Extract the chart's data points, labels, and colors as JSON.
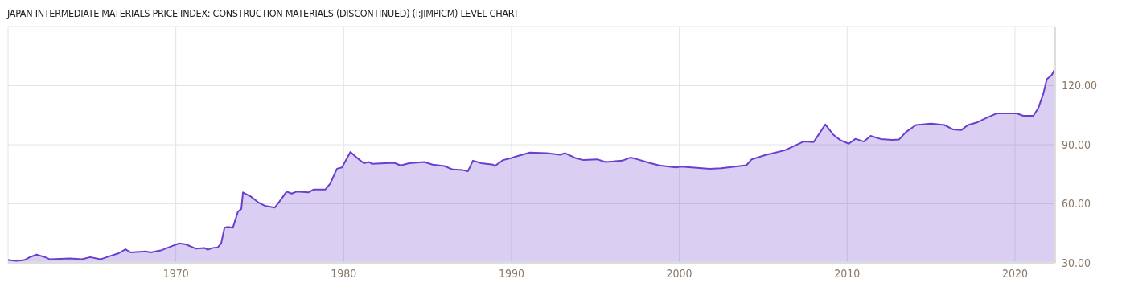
{
  "chart_data": {
    "type": "area",
    "title": "JAPAN INTERMEDIATE MATERIALS PRICE INDEX: CONSTRUCTION MATERIALS (DISCONTINUED) (I:JIMPICM) LEVEL CHART",
    "x": [
      1960.0,
      1960.5,
      1961.0,
      1961.3,
      1961.7,
      1962.2,
      1962.5,
      1963.7,
      1964.4,
      1964.9,
      1965.5,
      1966.1,
      1966.6,
      1967.0,
      1967.3,
      1968.2,
      1968.5,
      1969.1,
      1969.8,
      1970.2,
      1970.6,
      1971.2,
      1971.7,
      1971.9,
      1972.2,
      1972.5,
      1972.7,
      1972.9,
      1973.1,
      1973.4,
      1973.7,
      1973.9,
      1974.0,
      1974.5,
      1974.9,
      1975.3,
      1975.9,
      1976.2,
      1976.6,
      1976.9,
      1977.2,
      1977.9,
      1978.2,
      1978.9,
      1979.2,
      1979.6,
      1979.9,
      1980.4,
      1980.9,
      1981.2,
      1981.5,
      1981.7,
      1983.0,
      1983.4,
      1983.9,
      1984.8,
      1985.3,
      1986.0,
      1986.5,
      1987.1,
      1987.4,
      1987.7,
      1988.2,
      1988.9,
      1989.0,
      1989.5,
      1990.0,
      1990.5,
      1991.1,
      1992.1,
      1992.9,
      1993.2,
      1993.8,
      1994.3,
      1995.1,
      1995.6,
      1996.6,
      1997.1,
      1997.5,
      1998.2,
      1998.8,
      1999.8,
      2000.1,
      2000.9,
      2001.8,
      2002.5,
      2004.0,
      2004.3,
      2005.1,
      2006.3,
      2007.4,
      2008.0,
      2008.4,
      2008.7,
      2009.2,
      2009.6,
      2010.1,
      2010.5,
      2011.0,
      2011.4,
      2012.0,
      2012.7,
      2013.1,
      2013.5,
      2014.1,
      2015.0,
      2015.8,
      2016.3,
      2016.8,
      2017.2,
      2017.7,
      2018.2,
      2018.9,
      2020.1,
      2020.5,
      2021.1,
      2021.4,
      2021.7,
      2021.9,
      2022.2,
      2022.4
    ],
    "series": [
      {
        "color": "#6a3fd0",
        "values": [
          31.5,
          30.8,
          31.5,
          32.9,
          34.2,
          32.9,
          31.8,
          32.2,
          31.8,
          32.9,
          31.8,
          33.5,
          34.9,
          36.9,
          35.3,
          35.8,
          35.3,
          36.3,
          38.6,
          39.9,
          39.4,
          37.2,
          37.6,
          36.7,
          37.6,
          37.9,
          39.9,
          47.9,
          48.3,
          47.9,
          56.0,
          57.4,
          65.8,
          63.5,
          60.8,
          59.0,
          58.1,
          61.5,
          66.2,
          65.2,
          66.2,
          65.8,
          67.2,
          67.2,
          70.3,
          77.8,
          78.5,
          86.3,
          82.6,
          80.6,
          81.2,
          80.3,
          80.8,
          79.5,
          80.6,
          81.2,
          79.9,
          79.2,
          77.4,
          77.1,
          76.5,
          81.9,
          80.6,
          79.9,
          79.2,
          82.2,
          83.3,
          84.6,
          86.0,
          85.7,
          84.9,
          85.7,
          83.3,
          82.2,
          82.6,
          81.2,
          81.9,
          83.5,
          82.6,
          80.8,
          79.5,
          78.5,
          78.9,
          78.4,
          77.8,
          78.1,
          79.6,
          82.5,
          84.7,
          87.2,
          91.6,
          91.3,
          96.4,
          100.3,
          94.9,
          92.3,
          90.5,
          93.0,
          91.6,
          94.5,
          92.9,
          92.4,
          92.7,
          96.4,
          100.0,
          100.7,
          100.0,
          97.8,
          97.4,
          100.0,
          101.2,
          103.2,
          105.9,
          105.9,
          104.7,
          104.7,
          108.8,
          116.1,
          123.3,
          125.5,
          128.9
        ]
      }
    ],
    "xlim": [
      1960,
      2022.4
    ],
    "xticks": [
      1970,
      1980,
      1990,
      2000,
      2010,
      2020
    ],
    "ylim": [
      30,
      150
    ],
    "yticks": [
      {
        "value": 30,
        "label": "30.00"
      },
      {
        "value": 60,
        "label": "60.00"
      },
      {
        "value": 90,
        "label": "90.00"
      },
      {
        "value": 120,
        "label": "120.00"
      }
    ],
    "grid": true,
    "legend": false,
    "marker": "none",
    "line_style": "solid"
  }
}
